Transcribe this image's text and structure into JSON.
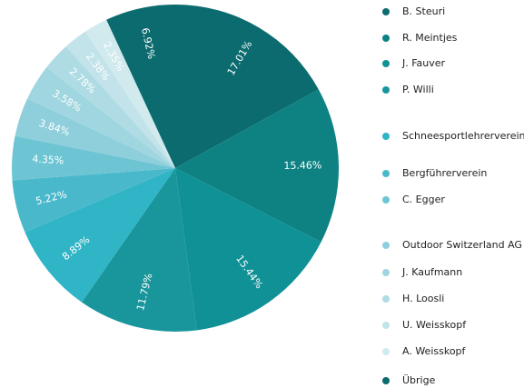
{
  "chart_data": {
    "type": "pie",
    "categories": [
      "B. Steuri",
      "R. Meintjes",
      "J. Fauver",
      "P. Willi",
      "Schneesportlehrerverein",
      "Bergführerverein",
      "C. Egger",
      "Outdoor Switzerland AG",
      "J. Kaufmann",
      "H. Loosli",
      "U. Weisskopf",
      "A. Weisskopf",
      "Übrige"
    ],
    "values": [
      17.01,
      15.46,
      15.44,
      11.79,
      8.89,
      5.22,
      4.35,
      3.84,
      3.58,
      2.78,
      2.38,
      2.35,
      6.92
    ],
    "value_labels": [
      "17.01%",
      "15.46%",
      "15.44%",
      "11.79%",
      "8.89%",
      "5.22%",
      "4.35%",
      "3.84%",
      "3.58%",
      "2.78%",
      "2.38%",
      "2.35%",
      "6.92%"
    ],
    "colors": [
      "#0b6b6e",
      "#0e8282",
      "#0f9196",
      "#19969c",
      "#2fb5c6",
      "#4ab8cb",
      "#6dc5d4",
      "#8ecfdb",
      "#a0d6df",
      "#afdce4",
      "#c2e3e9",
      "#d1eaee",
      "#0b6b6e"
    ],
    "legend": "right"
  }
}
